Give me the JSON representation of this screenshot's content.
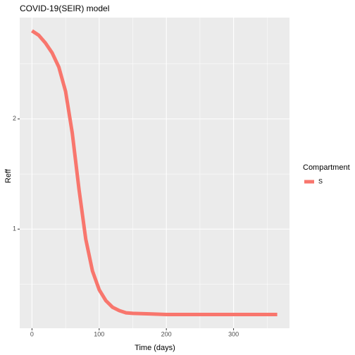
{
  "chart_data": {
    "type": "line",
    "title": "COVID-19(SEIR) model",
    "x_label": "Time (days)",
    "y_label": "Reff",
    "x": [
      0,
      10,
      20,
      30,
      40,
      50,
      60,
      70,
      80,
      90,
      100,
      110,
      120,
      130,
      140,
      150,
      175,
      200,
      250,
      300,
      365
    ],
    "series": [
      {
        "name": "S",
        "color": "#F8766D",
        "values": [
          2.8,
          2.76,
          2.69,
          2.6,
          2.47,
          2.25,
          1.87,
          1.36,
          0.91,
          0.62,
          0.45,
          0.35,
          0.29,
          0.26,
          0.24,
          0.235,
          0.23,
          0.225,
          0.225,
          0.225,
          0.225
        ]
      }
    ],
    "legend_title": "Compartment",
    "legend": "right",
    "xlim": [
      -18.25,
      383.25
    ],
    "xticks": [
      0,
      100,
      200,
      300
    ],
    "ylim": [
      0.1,
      2.92
    ],
    "yticks": [
      1,
      2
    ],
    "grid": true
  }
}
